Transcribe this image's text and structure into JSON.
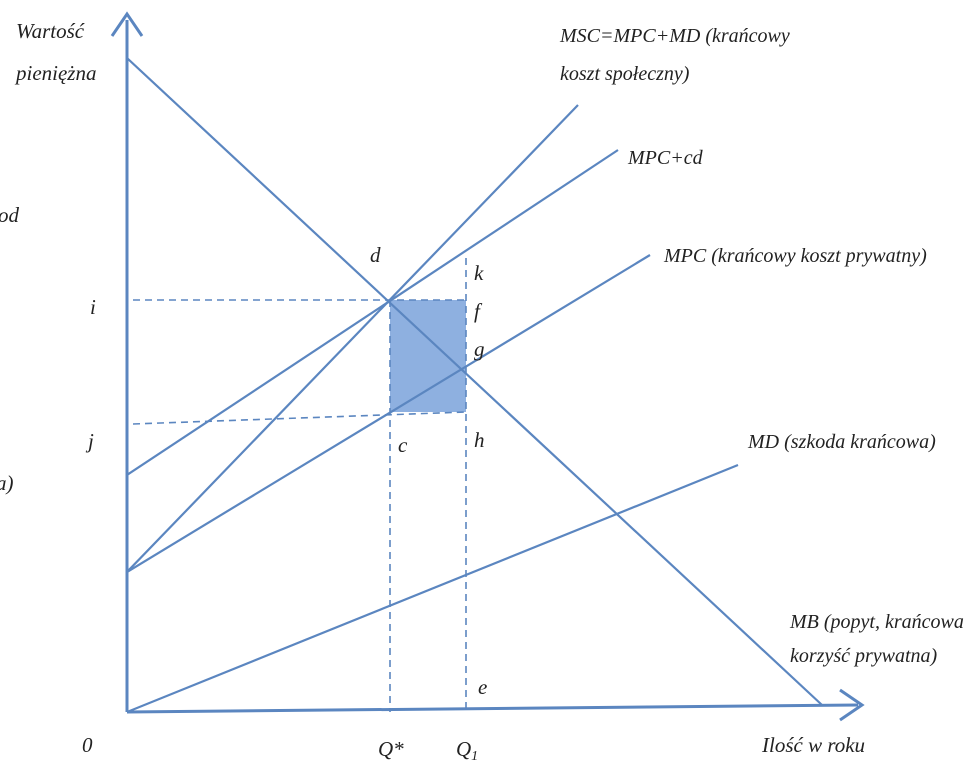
{
  "axes": {
    "y_label_line1": "Wartość",
    "y_label_line2": "pieniężna",
    "x_label": "Ilość w roku",
    "origin": "0"
  },
  "curves": {
    "msc_line1": "MSC=MPC+MD (krańcowy",
    "msc_line2": "koszt społeczny)",
    "mpc_cd": "MPC+cd",
    "mpc": "MPC (krańcowy koszt prywatny)",
    "md": "MD (szkoda krańcowa)",
    "mb_line1": "MB (popyt, krańcowa",
    "mb_line2": "korzyść prywatna)"
  },
  "points": {
    "d": "d",
    "k": "k",
    "f": "f",
    "g": "g",
    "c": "c",
    "h": "h",
    "e": "e",
    "i": "i",
    "j": "j",
    "q_star": "Q*",
    "q1": "Q",
    "q1_sub": "1"
  },
  "cut_off": {
    "left_od": "od",
    "left_a": "a)"
  },
  "colors": {
    "line": "#5b86c0",
    "area": "#8eb0e0"
  }
}
